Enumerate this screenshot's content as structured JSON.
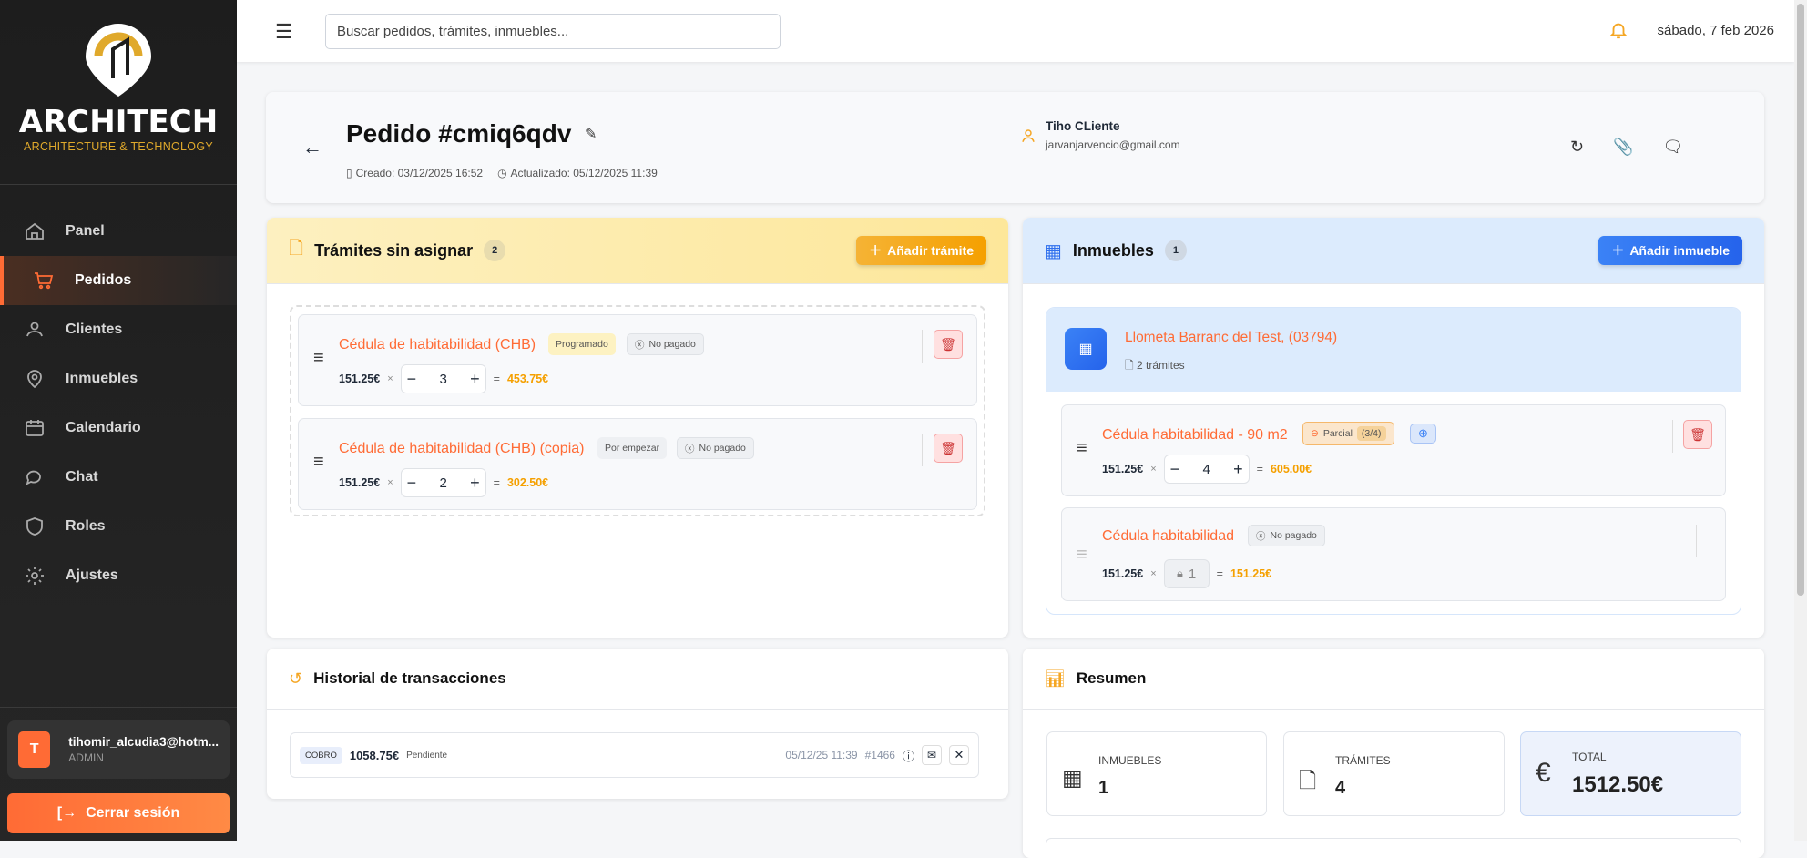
{
  "sidebar": {
    "brand": "ARCHITECH",
    "brand_sub": "ARCHITECTURE & TECHNOLOGY",
    "items": [
      {
        "label": "Panel",
        "icon": "home-icon"
      },
      {
        "label": "Pedidos",
        "icon": "cart-icon",
        "active": true
      },
      {
        "label": "Clientes",
        "icon": "users-icon"
      },
      {
        "label": "Inmuebles",
        "icon": "map-pin-icon"
      },
      {
        "label": "Calendario",
        "icon": "calendar-icon"
      },
      {
        "label": "Chat",
        "icon": "chat-icon"
      },
      {
        "label": "Roles",
        "icon": "shield-icon"
      },
      {
        "label": "Ajustes",
        "icon": "gear-icon"
      }
    ],
    "user": {
      "initial": "T",
      "email": "tihomir_alcudia3@hotm...",
      "role": "ADMIN"
    },
    "logout": "Cerrar sesión"
  },
  "topbar": {
    "search_placeholder": "Buscar pedidos, trámites, inmuebles...",
    "date": "sábado, 7 feb 2026"
  },
  "header": {
    "title": "Pedido #cmiq6qdv",
    "created": "Creado: 03/12/2025 16:52",
    "updated": "Actualizado: 05/12/2025 11:39",
    "client_name": "Tiho CLiente",
    "client_email": "jarvanjarvencio@gmail.com"
  },
  "tramites": {
    "title": "Trámites sin asignar",
    "count": "2",
    "add": "Añadir trámite",
    "items": [
      {
        "name": "Cédula de habitabilidad (CHB)",
        "status": "Programado",
        "payment": "No pagado",
        "price": "151.25€",
        "qty": "3",
        "total": "453.75€"
      },
      {
        "name": "Cédula de habitabilidad (CHB) (copia)",
        "status": "Por empezar",
        "payment": "No pagado",
        "price": "151.25€",
        "qty": "2",
        "total": "302.50€"
      }
    ]
  },
  "inmuebles": {
    "title": "Inmuebles",
    "count": "1",
    "add": "Añadir inmueble",
    "property": {
      "name": "Llometa Barranc del Test, (03794)",
      "tramites": "2 trámites",
      "items": [
        {
          "name": "Cédula habitabilidad - 90 m2",
          "payment": "Parcial",
          "payment_count": "(3/4)",
          "price": "151.25€",
          "qty": "4",
          "total": "605.00€"
        },
        {
          "name": "Cédula habitabilidad",
          "payment": "No pagado",
          "price": "151.25€",
          "qty": "1",
          "total": "151.25€",
          "locked": true
        }
      ]
    }
  },
  "historial": {
    "title": "Historial de transacciones",
    "tx": {
      "type": "COBRO",
      "amount": "1058.75€",
      "status": "Pendiente",
      "date": "05/12/25 11:39",
      "id": "#1466"
    }
  },
  "resumen": {
    "title": "Resumen",
    "stats": [
      {
        "label": "INMUEBLES",
        "value": "1"
      },
      {
        "label": "TRÁMITES",
        "value": "4"
      },
      {
        "label": "TOTAL",
        "value": "1512.50€"
      }
    ]
  },
  "colors": {
    "accent": "#ff6b35",
    "amber": "#f5a623",
    "blue": "#2f6fed"
  }
}
